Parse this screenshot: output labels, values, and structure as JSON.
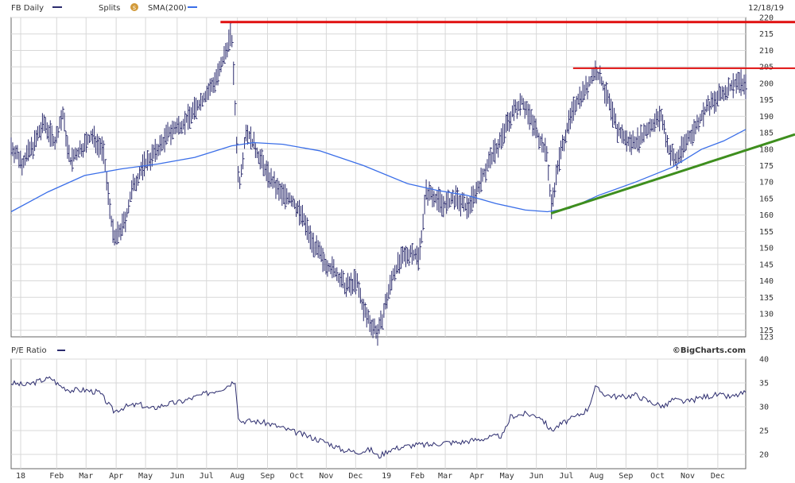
{
  "header": {
    "symbol_label": "FB Daily",
    "splits_label": "Splits",
    "splits_icon": "s",
    "sma_label": "SMA(200)",
    "date": "12/18/19",
    "symbol_color": "#2c2c6e",
    "sma_color": "#3a6ee8"
  },
  "pe_panel": {
    "label": "P/E Ratio",
    "brand": "©BigCharts.com"
  },
  "chart_data": [
    {
      "type": "line",
      "title": "FB Daily",
      "ylim": [
        123,
        220
      ],
      "yticks": [
        220,
        215,
        210,
        205,
        200,
        195,
        190,
        185,
        180,
        175,
        170,
        165,
        160,
        155,
        150,
        145,
        140,
        135,
        130,
        125,
        123
      ],
      "ohlc_price_path": [
        [
          0,
          181
        ],
        [
          0.015,
          176
        ],
        [
          0.03,
          181
        ],
        [
          0.045,
          188
        ],
        [
          0.06,
          182
        ],
        [
          0.07,
          191
        ],
        [
          0.08,
          176
        ],
        [
          0.095,
          180
        ],
        [
          0.11,
          184
        ],
        [
          0.125,
          180
        ],
        [
          0.14,
          152
        ],
        [
          0.155,
          158
        ],
        [
          0.165,
          168
        ],
        [
          0.18,
          175
        ],
        [
          0.2,
          180
        ],
        [
          0.215,
          185
        ],
        [
          0.235,
          188
        ],
        [
          0.25,
          192
        ],
        [
          0.27,
          198
        ],
        [
          0.285,
          204
        ],
        [
          0.3,
          216
        ],
        [
          0.31,
          168
        ],
        [
          0.32,
          186
        ],
        [
          0.335,
          179
        ],
        [
          0.35,
          172
        ],
        [
          0.365,
          167
        ],
        [
          0.38,
          165
        ],
        [
          0.395,
          160
        ],
        [
          0.41,
          152
        ],
        [
          0.425,
          146
        ],
        [
          0.44,
          143
        ],
        [
          0.455,
          138
        ],
        [
          0.47,
          140
        ],
        [
          0.48,
          131
        ],
        [
          0.49,
          127
        ],
        [
          0.5,
          124
        ],
        [
          0.51,
          133
        ],
        [
          0.52,
          142
        ],
        [
          0.53,
          146
        ],
        [
          0.545,
          149
        ],
        [
          0.555,
          147
        ],
        [
          0.565,
          167
        ],
        [
          0.575,
          166
        ],
        [
          0.59,
          163
        ],
        [
          0.605,
          165
        ],
        [
          0.62,
          162
        ],
        [
          0.635,
          168
        ],
        [
          0.65,
          176
        ],
        [
          0.665,
          182
        ],
        [
          0.68,
          190
        ],
        [
          0.695,
          195
        ],
        [
          0.71,
          188
        ],
        [
          0.72,
          183
        ],
        [
          0.73,
          178
        ],
        [
          0.735,
          162
        ],
        [
          0.745,
          176
        ],
        [
          0.755,
          185
        ],
        [
          0.77,
          195
        ],
        [
          0.785,
          199
        ],
        [
          0.795,
          204
        ],
        [
          0.805,
          200
        ],
        [
          0.815,
          193
        ],
        [
          0.825,
          186
        ],
        [
          0.84,
          182
        ],
        [
          0.855,
          183
        ],
        [
          0.87,
          187
        ],
        [
          0.885,
          190
        ],
        [
          0.895,
          180
        ],
        [
          0.905,
          176
        ],
        [
          0.915,
          181
        ],
        [
          0.93,
          186
        ],
        [
          0.945,
          192
        ],
        [
          0.96,
          195
        ],
        [
          0.975,
          198
        ],
        [
          0.99,
          201
        ],
        [
          1,
          199
        ]
      ],
      "sma_200": [
        [
          0,
          161
        ],
        [
          0.05,
          167
        ],
        [
          0.1,
          172
        ],
        [
          0.15,
          174
        ],
        [
          0.2,
          175.5
        ],
        [
          0.25,
          177.5
        ],
        [
          0.3,
          181
        ],
        [
          0.33,
          182
        ],
        [
          0.37,
          181.5
        ],
        [
          0.42,
          179.5
        ],
        [
          0.48,
          175
        ],
        [
          0.54,
          169.5
        ],
        [
          0.58,
          167.5
        ],
        [
          0.62,
          166
        ],
        [
          0.66,
          163.5
        ],
        [
          0.7,
          161.5
        ],
        [
          0.73,
          161
        ],
        [
          0.76,
          162
        ],
        [
          0.8,
          166
        ],
        [
          0.85,
          170
        ],
        [
          0.9,
          174.5
        ],
        [
          0.94,
          180
        ],
        [
          0.97,
          182.5
        ],
        [
          1,
          186
        ]
      ],
      "annotations": [
        {
          "type": "horizontal",
          "value": 218.6,
          "from": 0.285,
          "to": 1,
          "color": "#e01010"
        },
        {
          "type": "horizontal",
          "value": 204.6,
          "from": 0.765,
          "to": 1,
          "color": "#e01010"
        },
        {
          "type": "trendline",
          "from": [
            0.735,
            160.5
          ],
          "to": [
            1.07,
            184.5
          ],
          "color": "#3e8e1e"
        }
      ],
      "xticks": [
        "18",
        "Feb",
        "Mar",
        "Apr",
        "May",
        "Jun",
        "Jul",
        "Aug",
        "Sep",
        "Oct",
        "Nov",
        "Dec",
        "19",
        "Feb",
        "Mar",
        "Apr",
        "May",
        "Jun",
        "Jul",
        "Aug",
        "Sep",
        "Oct",
        "Nov",
        "Dec"
      ],
      "xtick_positions": [
        0.013,
        0.062,
        0.102,
        0.143,
        0.183,
        0.226,
        0.266,
        0.308,
        0.349,
        0.389,
        0.429,
        0.469,
        0.511,
        0.553,
        0.591,
        0.634,
        0.675,
        0.715,
        0.756,
        0.797,
        0.837,
        0.88,
        0.921,
        0.962
      ],
      "grid": true
    },
    {
      "type": "line",
      "title": "P/E Ratio",
      "ylim": [
        17,
        40
      ],
      "yticks": [
        40,
        35,
        30,
        25,
        20
      ],
      "values": [
        [
          0,
          35
        ],
        [
          0.02,
          34.5
        ],
        [
          0.04,
          35.5
        ],
        [
          0.055,
          36
        ],
        [
          0.065,
          34.5
        ],
        [
          0.08,
          33.5
        ],
        [
          0.1,
          33.5
        ],
        [
          0.12,
          33
        ],
        [
          0.14,
          29
        ],
        [
          0.155,
          30
        ],
        [
          0.175,
          30.5
        ],
        [
          0.19,
          29.5
        ],
        [
          0.21,
          30.5
        ],
        [
          0.23,
          31
        ],
        [
          0.25,
          32
        ],
        [
          0.27,
          33
        ],
        [
          0.29,
          34
        ],
        [
          0.305,
          35.5
        ],
        [
          0.31,
          27
        ],
        [
          0.33,
          27
        ],
        [
          0.35,
          26.5
        ],
        [
          0.37,
          25.5
        ],
        [
          0.39,
          24.5
        ],
        [
          0.41,
          23.5
        ],
        [
          0.43,
          22.5
        ],
        [
          0.45,
          21
        ],
        [
          0.47,
          20.5
        ],
        [
          0.49,
          21
        ],
        [
          0.5,
          19.5
        ],
        [
          0.515,
          21
        ],
        [
          0.53,
          21.5
        ],
        [
          0.55,
          22
        ],
        [
          0.57,
          22
        ],
        [
          0.59,
          22.5
        ],
        [
          0.61,
          22.5
        ],
        [
          0.63,
          23
        ],
        [
          0.65,
          23.5
        ],
        [
          0.67,
          24
        ],
        [
          0.68,
          28
        ],
        [
          0.7,
          28.5
        ],
        [
          0.72,
          28
        ],
        [
          0.735,
          25
        ],
        [
          0.75,
          26.5
        ],
        [
          0.77,
          28
        ],
        [
          0.785,
          29.5
        ],
        [
          0.795,
          34
        ],
        [
          0.81,
          32.5
        ],
        [
          0.83,
          32
        ],
        [
          0.85,
          32.5
        ],
        [
          0.87,
          31
        ],
        [
          0.89,
          30
        ],
        [
          0.9,
          31.5
        ],
        [
          0.92,
          31
        ],
        [
          0.94,
          32
        ],
        [
          0.96,
          32.5
        ],
        [
          0.98,
          32
        ],
        [
          1,
          33
        ]
      ],
      "xticks": [
        "18",
        "Feb",
        "Mar",
        "Apr",
        "May",
        "Jun",
        "Jul",
        "Aug",
        "Sep",
        "Oct",
        "Nov",
        "Dec",
        "19",
        "Feb",
        "Mar",
        "Apr",
        "May",
        "Jun",
        "Jul",
        "Aug",
        "Sep",
        "Oct",
        "Nov",
        "Dec"
      ],
      "grid": true
    }
  ]
}
